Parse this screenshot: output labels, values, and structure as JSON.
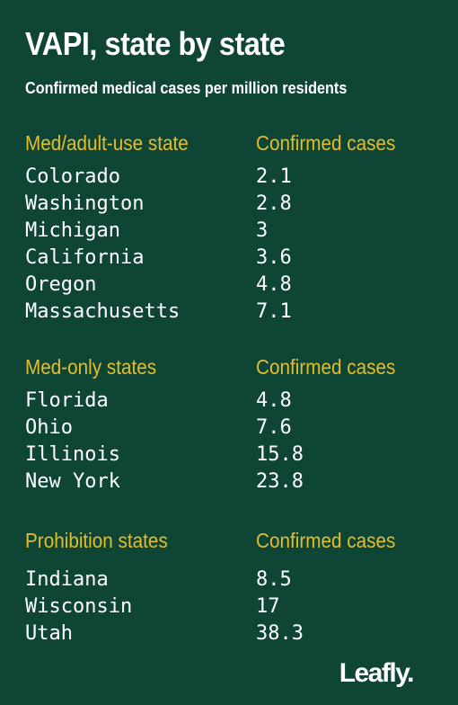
{
  "title": "VAPI, state by state",
  "subtitle": "Confirmed medical cases per million residents",
  "chart_data": {
    "type": "table",
    "columns": [
      "state",
      "Confirmed cases"
    ],
    "groups": [
      {
        "label": "Med/adult-use state",
        "value_header": "Confirmed cases",
        "rows": [
          {
            "state": "Colorado",
            "value": "2.1"
          },
          {
            "state": "Washington",
            "value": "2.8"
          },
          {
            "state": "Michigan",
            "value": "3"
          },
          {
            "state": "California",
            "value": "3.6"
          },
          {
            "state": "Oregon",
            "value": "4.8"
          },
          {
            "state": "Massachusetts",
            "value": "7.1"
          }
        ]
      },
      {
        "label": "Med-only states",
        "value_header": "Confirmed cases",
        "rows": [
          {
            "state": "Florida",
            "value": "4.8"
          },
          {
            "state": "Ohio",
            "value": "7.6"
          },
          {
            "state": "Illinois",
            "value": "15.8"
          },
          {
            "state": "New York",
            "value": "23.8"
          }
        ]
      },
      {
        "label": "Prohibition states",
        "value_header": "Confirmed cases",
        "rows": [
          {
            "state": "Indiana",
            "value": "8.5"
          },
          {
            "state": "Wisconsin",
            "value": "17"
          },
          {
            "state": "Utah",
            "value": "38.3"
          }
        ]
      }
    ]
  },
  "brand": {
    "logo_text": "Leafly."
  },
  "colors": {
    "background": "#0f4535",
    "accent": "#e3bd2d",
    "text": "#ffffff"
  }
}
